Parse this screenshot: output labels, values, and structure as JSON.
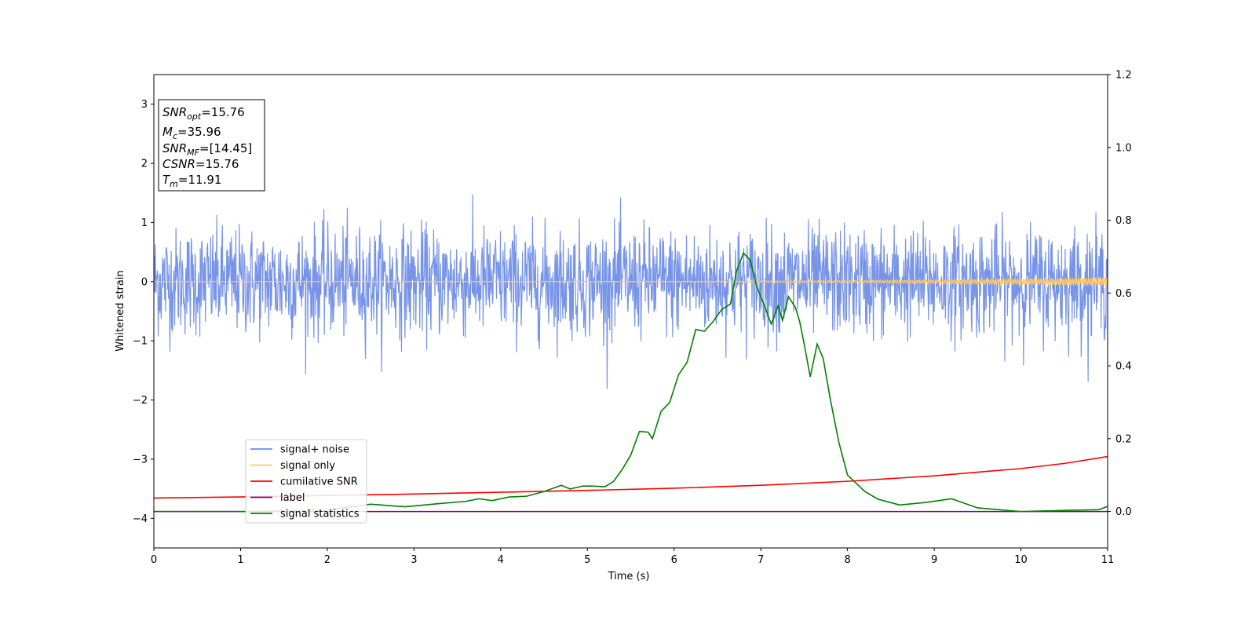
{
  "chart_data": {
    "type": "line",
    "xlabel": "Time (s)",
    "ylabel": "Whitened strain",
    "xlim": [
      0,
      11
    ],
    "ylim": [
      -4.5,
      3.5
    ],
    "y2lim": [
      -0.1,
      1.2
    ],
    "x_ticks": [
      "0",
      "1",
      "2",
      "3",
      "4",
      "5",
      "6",
      "7",
      "8",
      "9",
      "10",
      "11"
    ],
    "y_ticks": [
      "−4",
      "−3",
      "−2",
      "−1",
      "0",
      "1",
      "2",
      "3"
    ],
    "y2_ticks": [
      "0.0",
      "0.2",
      "0.4",
      "0.6",
      "0.8",
      "1.0",
      "1.2"
    ],
    "legend_position": "lower-left",
    "annotation": [
      {
        "main": "SNR",
        "sub": "opt",
        "value": "=15.76"
      },
      {
        "main": "M",
        "sub": "c",
        "value": "=35.96"
      },
      {
        "main": "SNR",
        "sub": "MF",
        "value": "=[14.45]"
      },
      {
        "main": "CSNR",
        "sub": "",
        "value": "=15.76"
      },
      {
        "main": "T",
        "sub": "m",
        "value": "=11.91"
      }
    ],
    "series": [
      {
        "name": "signal+ noise",
        "color": "#6b8be6",
        "axis": "left",
        "noise": {
          "std": 0.45,
          "rare_peak_max": 2.05,
          "rare_peak_min": -2.0,
          "samples": 2200
        }
      },
      {
        "name": "signal only",
        "color": "#ffc966",
        "axis": "left",
        "note": "chirp",
        "amp_start": 0.0,
        "amp_end": 0.07
      },
      {
        "name": "cumilative SNR",
        "color": "#ff0000",
        "axis": "right",
        "x": [
          0,
          1,
          2,
          3,
          4,
          5,
          6,
          7,
          8,
          9,
          10,
          10.5,
          11
        ],
        "y": [
          0.037,
          0.04,
          0.044,
          0.048,
          0.053,
          0.058,
          0.064,
          0.072,
          0.083,
          0.098,
          0.118,
          0.132,
          0.151
        ]
      },
      {
        "name": "label",
        "color": "#800080",
        "axis": "right",
        "x": [
          0,
          11
        ],
        "y": [
          0.0,
          0.0
        ]
      },
      {
        "name": "signal statistics",
        "color": "#008000",
        "axis": "right",
        "x": [
          0,
          1,
          2,
          2.5,
          2.9,
          3.3,
          3.6,
          3.75,
          3.9,
          4.1,
          4.3,
          4.5,
          4.7,
          4.8,
          4.95,
          5.05,
          5.2,
          5.3,
          5.4,
          5.5,
          5.6,
          5.7,
          5.75,
          5.85,
          5.95,
          6.05,
          6.15,
          6.25,
          6.35,
          6.45,
          6.55,
          6.65,
          6.72,
          6.8,
          6.88,
          6.95,
          7.05,
          7.12,
          7.2,
          7.25,
          7.32,
          7.4,
          7.45,
          7.5,
          7.57,
          7.65,
          7.72,
          7.8,
          7.9,
          8.0,
          8.2,
          8.35,
          8.6,
          8.9,
          9.2,
          9.5,
          10.0,
          10.5,
          10.9,
          11.0
        ],
        "y": [
          0.0,
          0.0,
          0.004,
          0.02,
          0.013,
          0.022,
          0.028,
          0.035,
          0.03,
          0.04,
          0.042,
          0.055,
          0.072,
          0.062,
          0.07,
          0.07,
          0.068,
          0.082,
          0.115,
          0.155,
          0.22,
          0.218,
          0.2,
          0.275,
          0.3,
          0.375,
          0.41,
          0.5,
          0.495,
          0.522,
          0.555,
          0.57,
          0.66,
          0.71,
          0.69,
          0.62,
          0.56,
          0.515,
          0.565,
          0.525,
          0.59,
          0.56,
          0.52,
          0.46,
          0.37,
          0.46,
          0.42,
          0.31,
          0.19,
          0.1,
          0.055,
          0.034,
          0.018,
          0.025,
          0.035,
          0.01,
          0.0,
          0.003,
          0.005,
          0.014
        ]
      }
    ]
  }
}
